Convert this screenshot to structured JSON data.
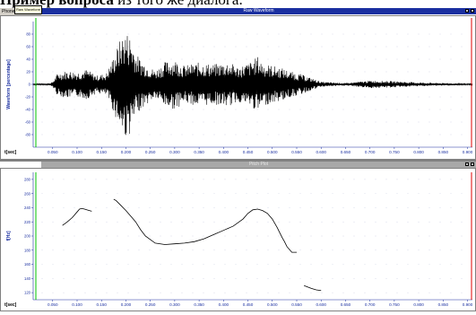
{
  "heading": {
    "bold": "Пример вопроса",
    "rest": " из того же диалога."
  },
  "tooltip": "Raw Waveform",
  "top_window": {
    "title": "Raw Waveform",
    "toolbar_label": "Phonetic"
  },
  "bottom_window": {
    "title": "Pitch Plot"
  },
  "colors": {
    "waveform": "#000000",
    "titlebar": "#1a2fa0",
    "marker_left": "#00c000",
    "marker_right": "#e00000"
  },
  "chart_data": [
    {
      "type": "line",
      "title": "Raw Waveform",
      "xlabel": "t[sec]",
      "ylabel": "Waveform [percentage]",
      "xlim": [
        0.01,
        0.91
      ],
      "ylim": [
        -100,
        100
      ],
      "x_ticks": [
        "0.050",
        "0.100",
        "0.150",
        "0.200",
        "0.250",
        "0.300",
        "0.350",
        "0.400",
        "0.450",
        "0.500",
        "0.550",
        "0.600",
        "0.650",
        "0.700",
        "0.750",
        "0.800",
        "0.850",
        "0.900"
      ],
      "y_ticks": [
        "80",
        "60",
        "40",
        "20",
        "0",
        "-20",
        "-40",
        "-60",
        "-80"
      ],
      "envelope": {
        "t": [
          0.01,
          0.04,
          0.05,
          0.06,
          0.08,
          0.1,
          0.12,
          0.14,
          0.16,
          0.17,
          0.18,
          0.19,
          0.2,
          0.21,
          0.22,
          0.23,
          0.24,
          0.26,
          0.28,
          0.3,
          0.32,
          0.35,
          0.38,
          0.41,
          0.43,
          0.45,
          0.46,
          0.47,
          0.48,
          0.49,
          0.5,
          0.52,
          0.54,
          0.56,
          0.58,
          0.6,
          0.65,
          0.7,
          0.75,
          0.8,
          0.85,
          0.9
        ],
        "amplitude": [
          1,
          1,
          4,
          18,
          22,
          20,
          24,
          14,
          18,
          35,
          55,
          75,
          85,
          78,
          50,
          40,
          34,
          22,
          36,
          40,
          30,
          35,
          32,
          36,
          28,
          34,
          38,
          45,
          35,
          32,
          30,
          26,
          20,
          16,
          10,
          4,
          2,
          6,
          5,
          3,
          2,
          1
        ]
      },
      "grid": true
    },
    {
      "type": "line",
      "title": "Pitch Plot",
      "xlabel": "t[sec]",
      "ylabel": "f[Hz]",
      "xlim": [
        0.01,
        0.91
      ],
      "ylim": [
        110,
        290
      ],
      "x_ticks": [
        "0.050",
        "0.100",
        "0.150",
        "0.200",
        "0.250",
        "0.300",
        "0.350",
        "0.400",
        "0.450",
        "0.500",
        "0.550",
        "0.600",
        "0.650",
        "0.700",
        "0.750",
        "0.800",
        "0.850",
        "0.900"
      ],
      "y_ticks": [
        "280",
        "260",
        "240",
        "220",
        "200",
        "180",
        "160",
        "140",
        "120"
      ],
      "series": [
        {
          "x": [
            0.07,
            0.08,
            0.09,
            0.1,
            0.105,
            0.11,
            0.115,
            0.125,
            0.13
          ],
          "y": [
            215,
            220,
            226,
            234,
            238,
            239,
            238,
            236,
            235
          ]
        },
        {
          "x": [
            0.175,
            0.18,
            0.19,
            0.2,
            0.21,
            0.22,
            0.23,
            0.24,
            0.25,
            0.26,
            0.28,
            0.3,
            0.32,
            0.34,
            0.36,
            0.38,
            0.4,
            0.42,
            0.44,
            0.45,
            0.46,
            0.47,
            0.48,
            0.49,
            0.5,
            0.51,
            0.515,
            0.52,
            0.525,
            0.53,
            0.54,
            0.55
          ],
          "y": [
            252,
            250,
            243,
            236,
            228,
            220,
            209,
            200,
            195,
            190,
            188,
            189,
            190,
            192,
            196,
            202,
            208,
            214,
            224,
            232,
            237,
            238,
            236,
            232,
            224,
            212,
            205,
            198,
            192,
            185,
            177,
            177
          ]
        },
        {
          "x": [
            0.565,
            0.58,
            0.59,
            0.6
          ],
          "y": [
            130,
            126,
            124,
            123
          ]
        }
      ],
      "grid": true
    }
  ]
}
